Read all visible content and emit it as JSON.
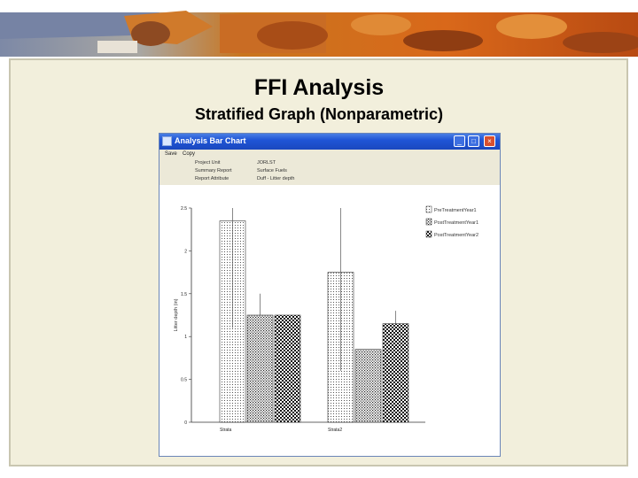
{
  "slide": {
    "title": "FFI Analysis",
    "subtitle": "Stratified Graph (Nonparametric)"
  },
  "window": {
    "title": "Analysis Bar Chart",
    "menu": [
      "Save",
      "Copy"
    ],
    "meta": [
      {
        "key": "Project Unit",
        "value": "JORLST"
      },
      {
        "key": "Summary Report",
        "value": "Surface Fuels"
      },
      {
        "key": "Report Attribute",
        "value": "Duff - Litter depth"
      }
    ]
  },
  "colors": {
    "slide_bg": "#f2efdc",
    "titlebar": "#1f55d6",
    "close_button": "#d8502f"
  },
  "chart_data": {
    "type": "bar",
    "categories": [
      "Strata",
      "Strata2"
    ],
    "series": [
      {
        "name": "PreTreatmentYear1",
        "values": [
          2.35,
          1.75
        ],
        "error_low": [
          1.1,
          0.6
        ],
        "error_high": [
          2.5,
          2.5
        ]
      },
      {
        "name": "PostTreatmentYear1",
        "values": [
          1.25,
          0.85
        ],
        "error_low": [
          1.25,
          0.85
        ],
        "error_high": [
          1.5,
          0.85
        ]
      },
      {
        "name": "PostTreatmentYear2",
        "values": [
          1.25,
          1.15
        ],
        "error_low": [
          1.25,
          1.15
        ],
        "error_high": [
          1.25,
          1.3
        ]
      }
    ],
    "ylim": [
      0,
      2.5
    ],
    "yticks": [
      "0",
      "0.5",
      "1",
      "1.5",
      "2",
      "2.5"
    ],
    "ylabel": "Litter depth (in)",
    "legend_position": "top-right",
    "grid": false
  }
}
